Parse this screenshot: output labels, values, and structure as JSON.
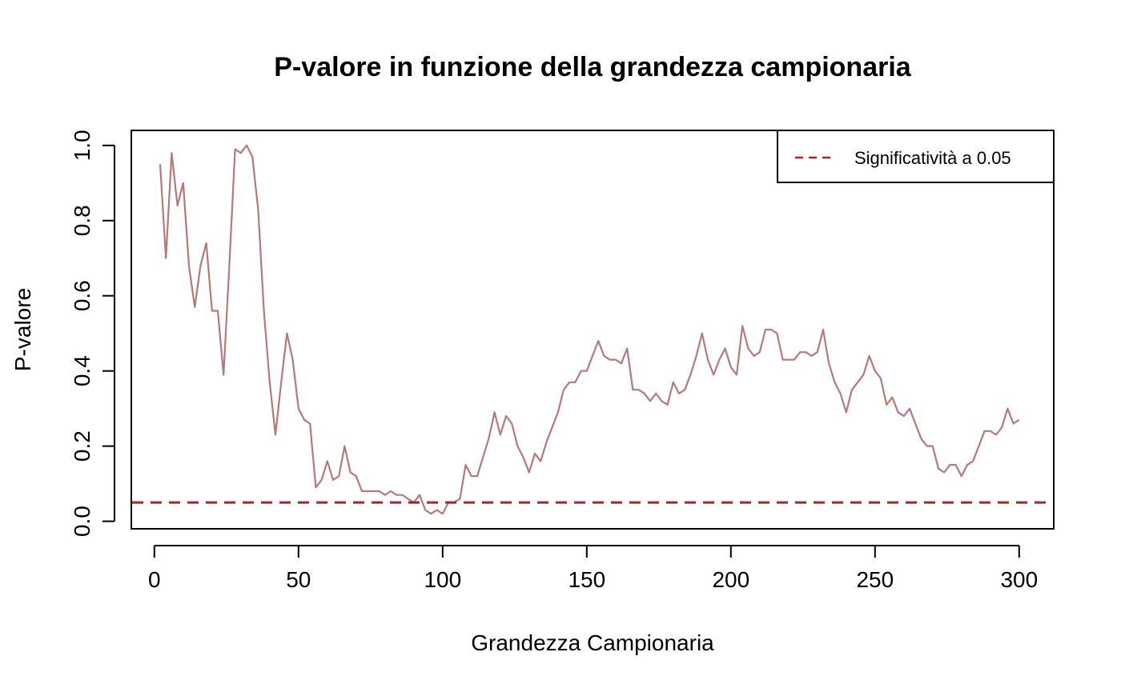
{
  "chart_data": {
    "type": "line",
    "title": "P-valore in funzione della grandezza campionaria",
    "xlabel": "Grandezza Campionaria",
    "ylabel": "P-valore",
    "xlim": [
      -8,
      312
    ],
    "ylim": [
      -0.02,
      1.04
    ],
    "x_ticks": [
      0,
      50,
      100,
      150,
      200,
      250,
      300
    ],
    "y_ticks": [
      0.0,
      0.2,
      0.4,
      0.6,
      0.8,
      1.0
    ],
    "x_tick_labels": [
      "0",
      "50",
      "100",
      "150",
      "200",
      "250",
      "300"
    ],
    "y_tick_labels": [
      "0.0",
      "0.2",
      "0.4",
      "0.6",
      "0.8",
      "1.0"
    ],
    "grid": false,
    "legend_position": "top-right",
    "series": [
      {
        "name": "",
        "color": "#b87878",
        "style": "solid",
        "x": [
          2,
          4,
          6,
          8,
          10,
          12,
          14,
          16,
          18,
          20,
          22,
          24,
          26,
          28,
          30,
          32,
          34,
          36,
          38,
          40,
          42,
          44,
          46,
          48,
          50,
          52,
          54,
          56,
          58,
          60,
          62,
          64,
          66,
          68,
          70,
          72,
          74,
          76,
          78,
          80,
          82,
          84,
          86,
          88,
          90,
          92,
          94,
          96,
          98,
          100,
          102,
          104,
          106,
          108,
          110,
          112,
          114,
          116,
          118,
          120,
          122,
          124,
          126,
          128,
          130,
          132,
          134,
          136,
          138,
          140,
          142,
          144,
          146,
          148,
          150,
          152,
          154,
          156,
          158,
          160,
          162,
          164,
          166,
          168,
          170,
          172,
          174,
          176,
          178,
          180,
          182,
          184,
          186,
          188,
          190,
          192,
          194,
          196,
          198,
          200,
          202,
          204,
          206,
          208,
          210,
          212,
          214,
          216,
          218,
          220,
          222,
          224,
          226,
          228,
          230,
          232,
          234,
          236,
          238,
          240,
          242,
          244,
          246,
          248,
          250,
          252,
          254,
          256,
          258,
          260,
          262,
          264,
          266,
          268,
          270,
          272,
          274,
          276,
          278,
          280,
          282,
          284,
          286,
          288,
          290,
          292,
          294,
          296,
          298,
          300
        ],
        "y": [
          0.95,
          0.7,
          0.98,
          0.84,
          0.9,
          0.68,
          0.57,
          0.68,
          0.74,
          0.56,
          0.56,
          0.39,
          0.68,
          0.99,
          0.98,
          1.0,
          0.97,
          0.83,
          0.56,
          0.37,
          0.23,
          0.37,
          0.5,
          0.43,
          0.3,
          0.27,
          0.26,
          0.09,
          0.11,
          0.16,
          0.11,
          0.12,
          0.2,
          0.13,
          0.12,
          0.08,
          0.08,
          0.08,
          0.08,
          0.07,
          0.08,
          0.07,
          0.07,
          0.06,
          0.05,
          0.07,
          0.03,
          0.02,
          0.03,
          0.02,
          0.05,
          0.05,
          0.06,
          0.15,
          0.12,
          0.12,
          0.17,
          0.22,
          0.29,
          0.23,
          0.28,
          0.26,
          0.2,
          0.17,
          0.13,
          0.18,
          0.16,
          0.21,
          0.25,
          0.29,
          0.35,
          0.37,
          0.37,
          0.4,
          0.4,
          0.44,
          0.48,
          0.44,
          0.43,
          0.43,
          0.42,
          0.46,
          0.35,
          0.35,
          0.34,
          0.32,
          0.34,
          0.32,
          0.31,
          0.37,
          0.34,
          0.35,
          0.39,
          0.44,
          0.5,
          0.43,
          0.39,
          0.43,
          0.46,
          0.41,
          0.39,
          0.52,
          0.46,
          0.44,
          0.45,
          0.51,
          0.51,
          0.5,
          0.43,
          0.43,
          0.43,
          0.45,
          0.45,
          0.44,
          0.45,
          0.51,
          0.42,
          0.37,
          0.34,
          0.29,
          0.35,
          0.37,
          0.39,
          0.44,
          0.4,
          0.38,
          0.31,
          0.33,
          0.29,
          0.28,
          0.3,
          0.26,
          0.22,
          0.2,
          0.2,
          0.14,
          0.13,
          0.15,
          0.15,
          0.12,
          0.15,
          0.16,
          0.2,
          0.24,
          0.24,
          0.23,
          0.25,
          0.3,
          0.26,
          0.27
        ]
      },
      {
        "name": "Significatività a 0.05",
        "color": "#a02828",
        "style": "dashed",
        "hline": 0.05
      }
    ]
  }
}
